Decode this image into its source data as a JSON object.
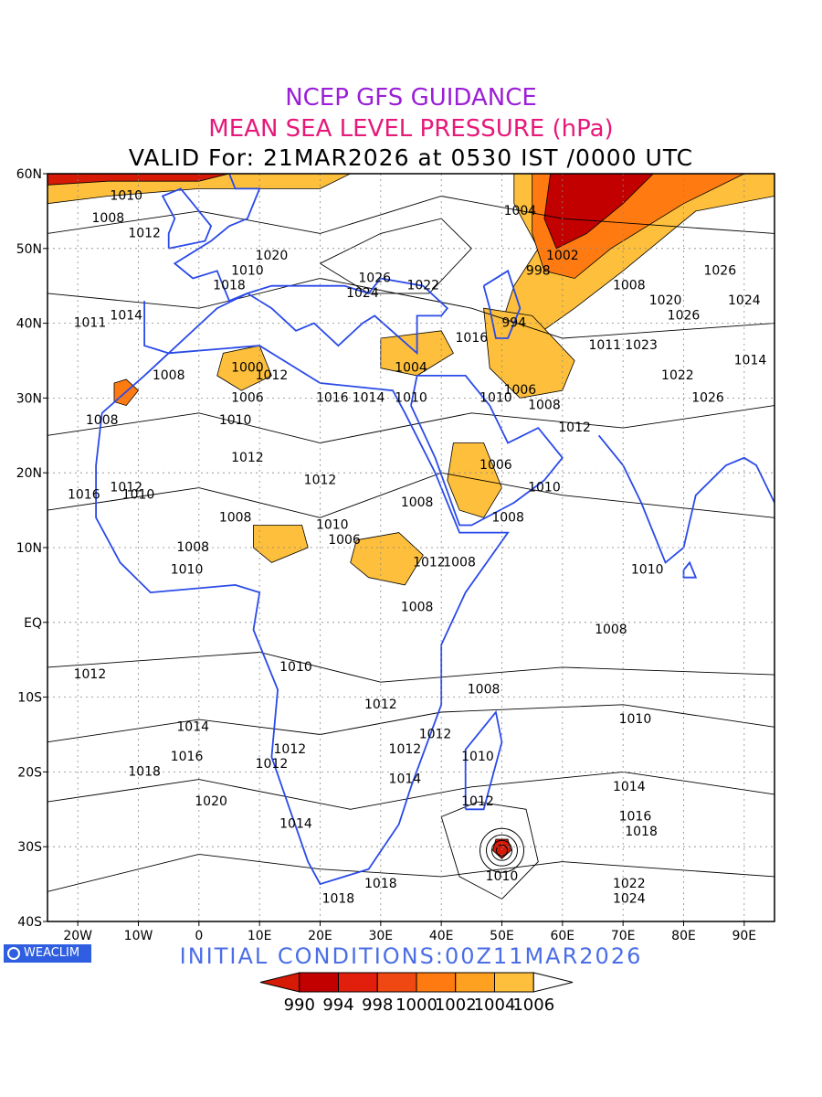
{
  "header": {
    "title": "NCEP GFS GUIDANCE",
    "subtitle": "MEAN SEA LEVEL PRESSURE (hPa)",
    "valid": "VALID For: 21MAR2026 at 0530 IST /0000 UTC",
    "title_color": "#9b1fd6",
    "subtitle_color": "#e6197a",
    "valid_color": "#000000"
  },
  "map": {
    "lon_range": [
      -25,
      95
    ],
    "lat_range": [
      -40,
      60
    ],
    "lat_ticks": [
      {
        "v": 60,
        "label": "60N"
      },
      {
        "v": 50,
        "label": "50N"
      },
      {
        "v": 40,
        "label": "40N"
      },
      {
        "v": 30,
        "label": "30N"
      },
      {
        "v": 20,
        "label": "20N"
      },
      {
        "v": 10,
        "label": "10N"
      },
      {
        "v": 0,
        "label": "EQ"
      },
      {
        "v": -10,
        "label": "10S"
      },
      {
        "v": -20,
        "label": "20S"
      },
      {
        "v": -30,
        "label": "30S"
      },
      {
        "v": -40,
        "label": "40S"
      }
    ],
    "lon_ticks": [
      {
        "v": -20,
        "label": "20W"
      },
      {
        "v": -10,
        "label": "10W"
      },
      {
        "v": 0,
        "label": "0"
      },
      {
        "v": 10,
        "label": "10E"
      },
      {
        "v": 20,
        "label": "20E"
      },
      {
        "v": 30,
        "label": "30E"
      },
      {
        "v": 40,
        "label": "40E"
      },
      {
        "v": 50,
        "label": "50E"
      },
      {
        "v": 60,
        "label": "60E"
      },
      {
        "v": 70,
        "label": "70E"
      },
      {
        "v": 80,
        "label": "80E"
      },
      {
        "v": 90,
        "label": "90E"
      }
    ],
    "contour_labels": [
      {
        "lon": -12,
        "lat": 57,
        "t": "1010"
      },
      {
        "lon": -15,
        "lat": 54,
        "t": "1008"
      },
      {
        "lon": -9,
        "lat": 52,
        "t": "1012"
      },
      {
        "lon": 12,
        "lat": 49,
        "t": "1020"
      },
      {
        "lon": 8,
        "lat": 47,
        "t": "1010"
      },
      {
        "lon": 5,
        "lat": 45,
        "t": "1018"
      },
      {
        "lon": 29,
        "lat": 46,
        "t": "1026"
      },
      {
        "lon": 37,
        "lat": 45,
        "t": "1022"
      },
      {
        "lon": 27,
        "lat": 44,
        "t": "1024"
      },
      {
        "lon": -12,
        "lat": 41,
        "t": "1014"
      },
      {
        "lon": -18,
        "lat": 40,
        "t": "1011"
      },
      {
        "lon": 53,
        "lat": 55,
        "t": "1004"
      },
      {
        "lon": 60,
        "lat": 49,
        "t": "1002"
      },
      {
        "lon": 56,
        "lat": 47,
        "t": "998"
      },
      {
        "lon": 52,
        "lat": 40,
        "t": "994"
      },
      {
        "lon": 71,
        "lat": 45,
        "t": "1008"
      },
      {
        "lon": 77,
        "lat": 43,
        "t": "1020"
      },
      {
        "lon": 80,
        "lat": 41,
        "t": "1026"
      },
      {
        "lon": 86,
        "lat": 47,
        "t": "1026"
      },
      {
        "lon": 90,
        "lat": 43,
        "t": "1024"
      },
      {
        "lon": -5,
        "lat": 33,
        "t": "1008"
      },
      {
        "lon": 8,
        "lat": 34,
        "t": "1000"
      },
      {
        "lon": 12,
        "lat": 33,
        "t": "1012"
      },
      {
        "lon": 8,
        "lat": 30,
        "t": "1006"
      },
      {
        "lon": 35,
        "lat": 34,
        "t": "1004"
      },
      {
        "lon": 35,
        "lat": 30,
        "t": "1010"
      },
      {
        "lon": 22,
        "lat": 30,
        "t": "1016"
      },
      {
        "lon": 28,
        "lat": 30,
        "t": "1014"
      },
      {
        "lon": 45,
        "lat": 38,
        "t": "1016"
      },
      {
        "lon": 53,
        "lat": 31,
        "t": "1006"
      },
      {
        "lon": 57,
        "lat": 29,
        "t": "1008"
      },
      {
        "lon": 49,
        "lat": 30,
        "t": "1010"
      },
      {
        "lon": 67,
        "lat": 37,
        "t": "1011"
      },
      {
        "lon": 73,
        "lat": 37,
        "t": "1023"
      },
      {
        "lon": 79,
        "lat": 33,
        "t": "1022"
      },
      {
        "lon": 84,
        "lat": 30,
        "t": "1026"
      },
      {
        "lon": 91,
        "lat": 35,
        "t": "1014"
      },
      {
        "lon": -16,
        "lat": 27,
        "t": "1008"
      },
      {
        "lon": 6,
        "lat": 27,
        "t": "1010"
      },
      {
        "lon": 8,
        "lat": 22,
        "t": "1012"
      },
      {
        "lon": 62,
        "lat": 26,
        "t": "1012"
      },
      {
        "lon": 20,
        "lat": 19,
        "t": "1012"
      },
      {
        "lon": -19,
        "lat": 17,
        "t": "1016"
      },
      {
        "lon": -12,
        "lat": 18,
        "t": "1012"
      },
      {
        "lon": -10,
        "lat": 17,
        "t": "1010"
      },
      {
        "lon": 6,
        "lat": 14,
        "t": "1008"
      },
      {
        "lon": 22,
        "lat": 13,
        "t": "1010"
      },
      {
        "lon": 24,
        "lat": 11,
        "t": "1006"
      },
      {
        "lon": 36,
        "lat": 16,
        "t": "1008"
      },
      {
        "lon": 49,
        "lat": 21,
        "t": "1006"
      },
      {
        "lon": 51,
        "lat": 14,
        "t": "1008"
      },
      {
        "lon": 57,
        "lat": 18,
        "t": "1010"
      },
      {
        "lon": -1,
        "lat": 10,
        "t": "1008"
      },
      {
        "lon": -2,
        "lat": 7,
        "t": "1010"
      },
      {
        "lon": 38,
        "lat": 8,
        "t": "1012"
      },
      {
        "lon": 43,
        "lat": 8,
        "t": "1008"
      },
      {
        "lon": 74,
        "lat": 7,
        "t": "1010"
      },
      {
        "lon": 36,
        "lat": 2,
        "t": "1008"
      },
      {
        "lon": 68,
        "lat": -1,
        "t": "1008"
      },
      {
        "lon": -18,
        "lat": -7,
        "t": "1012"
      },
      {
        "lon": 16,
        "lat": -6,
        "t": "1010"
      },
      {
        "lon": 47,
        "lat": -9,
        "t": "1008"
      },
      {
        "lon": 30,
        "lat": -11,
        "t": "1012"
      },
      {
        "lon": 72,
        "lat": -13,
        "t": "1010"
      },
      {
        "lon": -1,
        "lat": -14,
        "t": "1014"
      },
      {
        "lon": -2,
        "lat": -18,
        "t": "1016"
      },
      {
        "lon": -9,
        "lat": -20,
        "t": "1018"
      },
      {
        "lon": 15,
        "lat": -17,
        "t": "1012"
      },
      {
        "lon": 12,
        "lat": -19,
        "t": "1012"
      },
      {
        "lon": 34,
        "lat": -17,
        "t": "1012"
      },
      {
        "lon": 39,
        "lat": -15,
        "t": "1012"
      },
      {
        "lon": 46,
        "lat": -18,
        "t": "1010"
      },
      {
        "lon": 34,
        "lat": -21,
        "t": "1014"
      },
      {
        "lon": 71,
        "lat": -22,
        "t": "1014"
      },
      {
        "lon": 2,
        "lat": -24,
        "t": "1020"
      },
      {
        "lon": 46,
        "lat": -24,
        "t": "1012"
      },
      {
        "lon": 16,
        "lat": -27,
        "t": "1014"
      },
      {
        "lon": 72,
        "lat": -26,
        "t": "1016"
      },
      {
        "lon": 73,
        "lat": -28,
        "t": "1018"
      },
      {
        "lon": 30,
        "lat": -35,
        "t": "1018"
      },
      {
        "lon": 23,
        "lat": -37,
        "t": "1018"
      },
      {
        "lon": 50,
        "lat": -34,
        "t": "1010"
      },
      {
        "lon": 71,
        "lat": -35,
        "t": "1022"
      },
      {
        "lon": 71,
        "lat": -37,
        "t": "1024"
      }
    ],
    "colorbar": {
      "colors": [
        "#d61a06",
        "#c20000",
        "#e21f0c",
        "#f04812",
        "#ff7a10",
        "#ffa120",
        "#fdbf3c",
        "#ffffff"
      ],
      "labels": [
        "990",
        "994",
        "998",
        "1000",
        "1002",
        "1004",
        "1006"
      ]
    }
  },
  "footer": {
    "initial": "INITIAL CONDITIONS:00Z11MAR2026",
    "initial_color": "#4b6ee6",
    "logo": "WEACLIM"
  }
}
